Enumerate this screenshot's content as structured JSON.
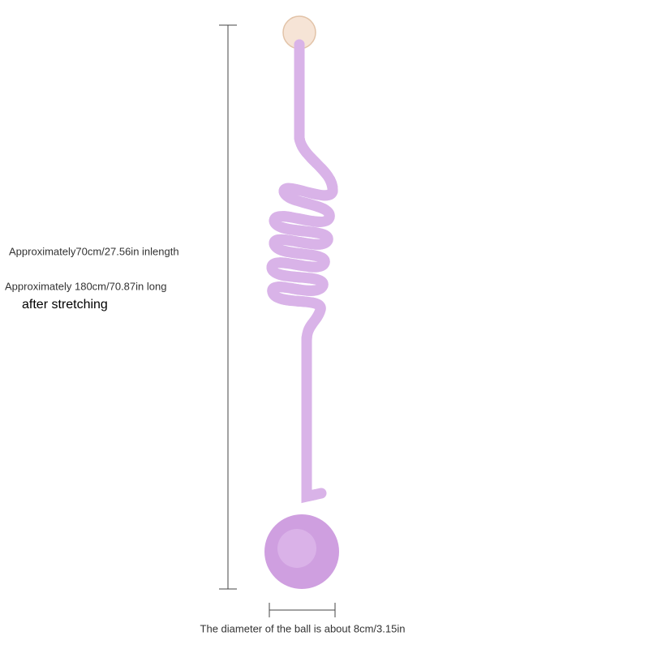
{
  "labels": {
    "length": "Approximately70cm/27.56in inlength",
    "stretched": "Approximately 180cm/70.87in long",
    "stretched_note": "after stretching",
    "diameter": "The diameter of the ball is about 8cm/3.15in"
  }
}
